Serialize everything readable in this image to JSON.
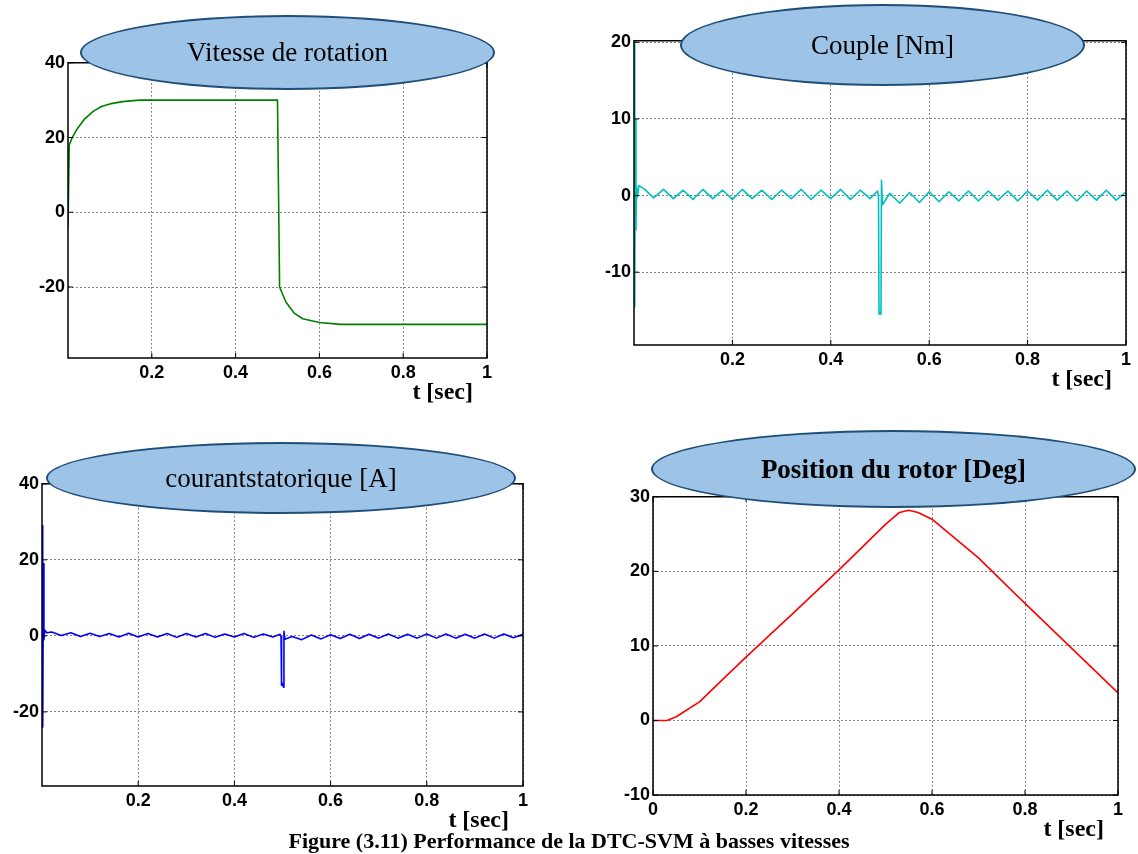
{
  "chart_data": [
    {
      "type": "line",
      "title": "Vitesse de rotation",
      "xlabel": "t [sec]",
      "xlim": [
        0,
        1
      ],
      "xticks": [
        0.2,
        0.4,
        0.6,
        0.8,
        1
      ],
      "ylim": [
        -39,
        40
      ],
      "yticks": [
        -20,
        0,
        20,
        40
      ],
      "grid": true,
      "series": [
        {
          "color": "#008000",
          "x": [
            0,
            0.003,
            0.01,
            0.02,
            0.04,
            0.06,
            0.08,
            0.1,
            0.13,
            0.17,
            0.5,
            0.502,
            0.505,
            0.52,
            0.54,
            0.56,
            0.6,
            0.65,
            1
          ],
          "values": [
            -4,
            18,
            20,
            22,
            25,
            27,
            28.3,
            29,
            29.6,
            30,
            30,
            10,
            -20,
            -24,
            -27,
            -28.5,
            -29.5,
            -30,
            -30
          ]
        }
      ]
    },
    {
      "type": "line",
      "title": "Couple [Nm]",
      "xlabel": "t [sec]",
      "xlim": [
        0,
        1
      ],
      "xticks": [
        0.2,
        0.4,
        0.6,
        0.8,
        1
      ],
      "ylim": [
        -19.5,
        20.2
      ],
      "yticks": [
        -10,
        0,
        10,
        20
      ],
      "grid": true,
      "series": [
        {
          "color": "#00bfbf",
          "x": [
            0,
            0.001,
            0.002,
            0.003,
            0.004,
            0.005,
            0.007,
            0.01,
            0.02,
            0.04,
            0.06,
            0.08,
            0.1,
            0.12,
            0.14,
            0.16,
            0.18,
            0.2,
            0.22,
            0.24,
            0.26,
            0.28,
            0.3,
            0.32,
            0.34,
            0.36,
            0.38,
            0.4,
            0.42,
            0.44,
            0.46,
            0.48,
            0.495,
            0.497,
            0.498,
            0.5,
            0.502,
            0.503,
            0.505,
            0.52,
            0.54,
            0.56,
            0.58,
            0.6,
            0.62,
            0.64,
            0.66,
            0.68,
            0.7,
            0.72,
            0.74,
            0.76,
            0.78,
            0.8,
            0.82,
            0.84,
            0.86,
            0.88,
            0.9,
            0.92,
            0.94,
            0.96,
            0.98,
            1
          ],
          "values": [
            0,
            20,
            -14.5,
            10,
            -4.5,
            1.2,
            -0.2,
            1.3,
            0.9,
            -0.3,
            0.8,
            -0.4,
            0.7,
            -0.5,
            0.8,
            -0.4,
            0.7,
            -0.5,
            0.8,
            -0.4,
            0.7,
            -0.5,
            0.7,
            -0.4,
            0.8,
            -0.5,
            0.7,
            -0.4,
            0.8,
            -0.5,
            0.7,
            -0.4,
            0.6,
            -0.3,
            -15.5,
            -15.2,
            -15.5,
            2,
            -1.2,
            0.3,
            -1,
            0.4,
            -0.9,
            0.5,
            -0.8,
            0.5,
            -0.7,
            0.6,
            -0.7,
            0.6,
            -0.6,
            0.6,
            -0.7,
            0.6,
            -0.6,
            0.7,
            -0.6,
            0.6,
            -0.7,
            0.6,
            -0.6,
            0.7,
            -0.6,
            0.5
          ]
        }
      ]
    },
    {
      "type": "line",
      "title": "courantstatorique [A]",
      "xlabel": "t [sec]",
      "xlim": [
        0,
        1
      ],
      "xticks": [
        0.2,
        0.4,
        0.6,
        0.8,
        1
      ],
      "ylim": [
        -39.5,
        40
      ],
      "yticks": [
        -20,
        0,
        20,
        40
      ],
      "grid": true,
      "series": [
        {
          "color": "#0000ff",
          "x": [
            0,
            0.001,
            0.002,
            0.003,
            0.004,
            0.006,
            0.01,
            0.02,
            0.04,
            0.06,
            0.08,
            0.1,
            0.12,
            0.14,
            0.16,
            0.18,
            0.2,
            0.22,
            0.24,
            0.26,
            0.28,
            0.3,
            0.32,
            0.34,
            0.36,
            0.38,
            0.4,
            0.42,
            0.44,
            0.46,
            0.48,
            0.495,
            0.497,
            0.498,
            0.5,
            0.502,
            0.503,
            0.505,
            0.52,
            0.54,
            0.56,
            0.58,
            0.6,
            0.62,
            0.64,
            0.66,
            0.68,
            0.7,
            0.72,
            0.74,
            0.76,
            0.78,
            0.8,
            0.82,
            0.84,
            0.86,
            0.88,
            0.9,
            0.92,
            0.94,
            0.96,
            0.98,
            1
          ],
          "values": [
            0,
            29,
            -24,
            19,
            -1,
            1.5,
            0.8,
            1,
            0.1,
            0.8,
            -0.2,
            0.7,
            -0.2,
            0.6,
            -0.3,
            0.7,
            -0.3,
            0.6,
            -0.3,
            0.6,
            -0.4,
            0.6,
            -0.3,
            0.6,
            -0.4,
            0.5,
            -0.3,
            0.6,
            -0.4,
            0.5,
            -0.3,
            0.4,
            -0.2,
            -13,
            -12.5,
            -13.5,
            1.2,
            -0.9,
            -0.2,
            -1,
            0.2,
            -0.8,
            0.3,
            -0.7,
            0.4,
            -0.7,
            0.4,
            -0.6,
            0.5,
            -0.6,
            0.4,
            -0.6,
            0.5,
            -0.6,
            0.5,
            -0.6,
            0.4,
            -0.6,
            0.5,
            -0.6,
            0.5,
            -0.5,
            0.4
          ]
        }
      ]
    },
    {
      "type": "line",
      "title": "Position du rotor [Deg]",
      "xlabel": "t [sec]",
      "xlim": [
        0,
        1
      ],
      "xticks": [
        0,
        0.2,
        0.4,
        0.6,
        0.8,
        1
      ],
      "ylim": [
        -10,
        30
      ],
      "yticks": [
        -10,
        0,
        10,
        20,
        30
      ],
      "grid": true,
      "annotations": [
        "Figure (3.11)  Performance  de  la DTC-SVM à basses vitesses"
      ],
      "series": [
        {
          "color": "#ff0000",
          "x": [
            0,
            0.03,
            0.05,
            0.1,
            0.15,
            0.2,
            0.3,
            0.4,
            0.5,
            0.53,
            0.55,
            0.57,
            0.6,
            0.7,
            0.8,
            0.9,
            1
          ],
          "values": [
            0,
            0,
            0.5,
            2.5,
            5.5,
            8.5,
            14.3,
            20.2,
            26.3,
            27.9,
            28.2,
            27.9,
            27,
            21.8,
            15.7,
            9.7,
            3.7
          ]
        }
      ]
    }
  ]
}
